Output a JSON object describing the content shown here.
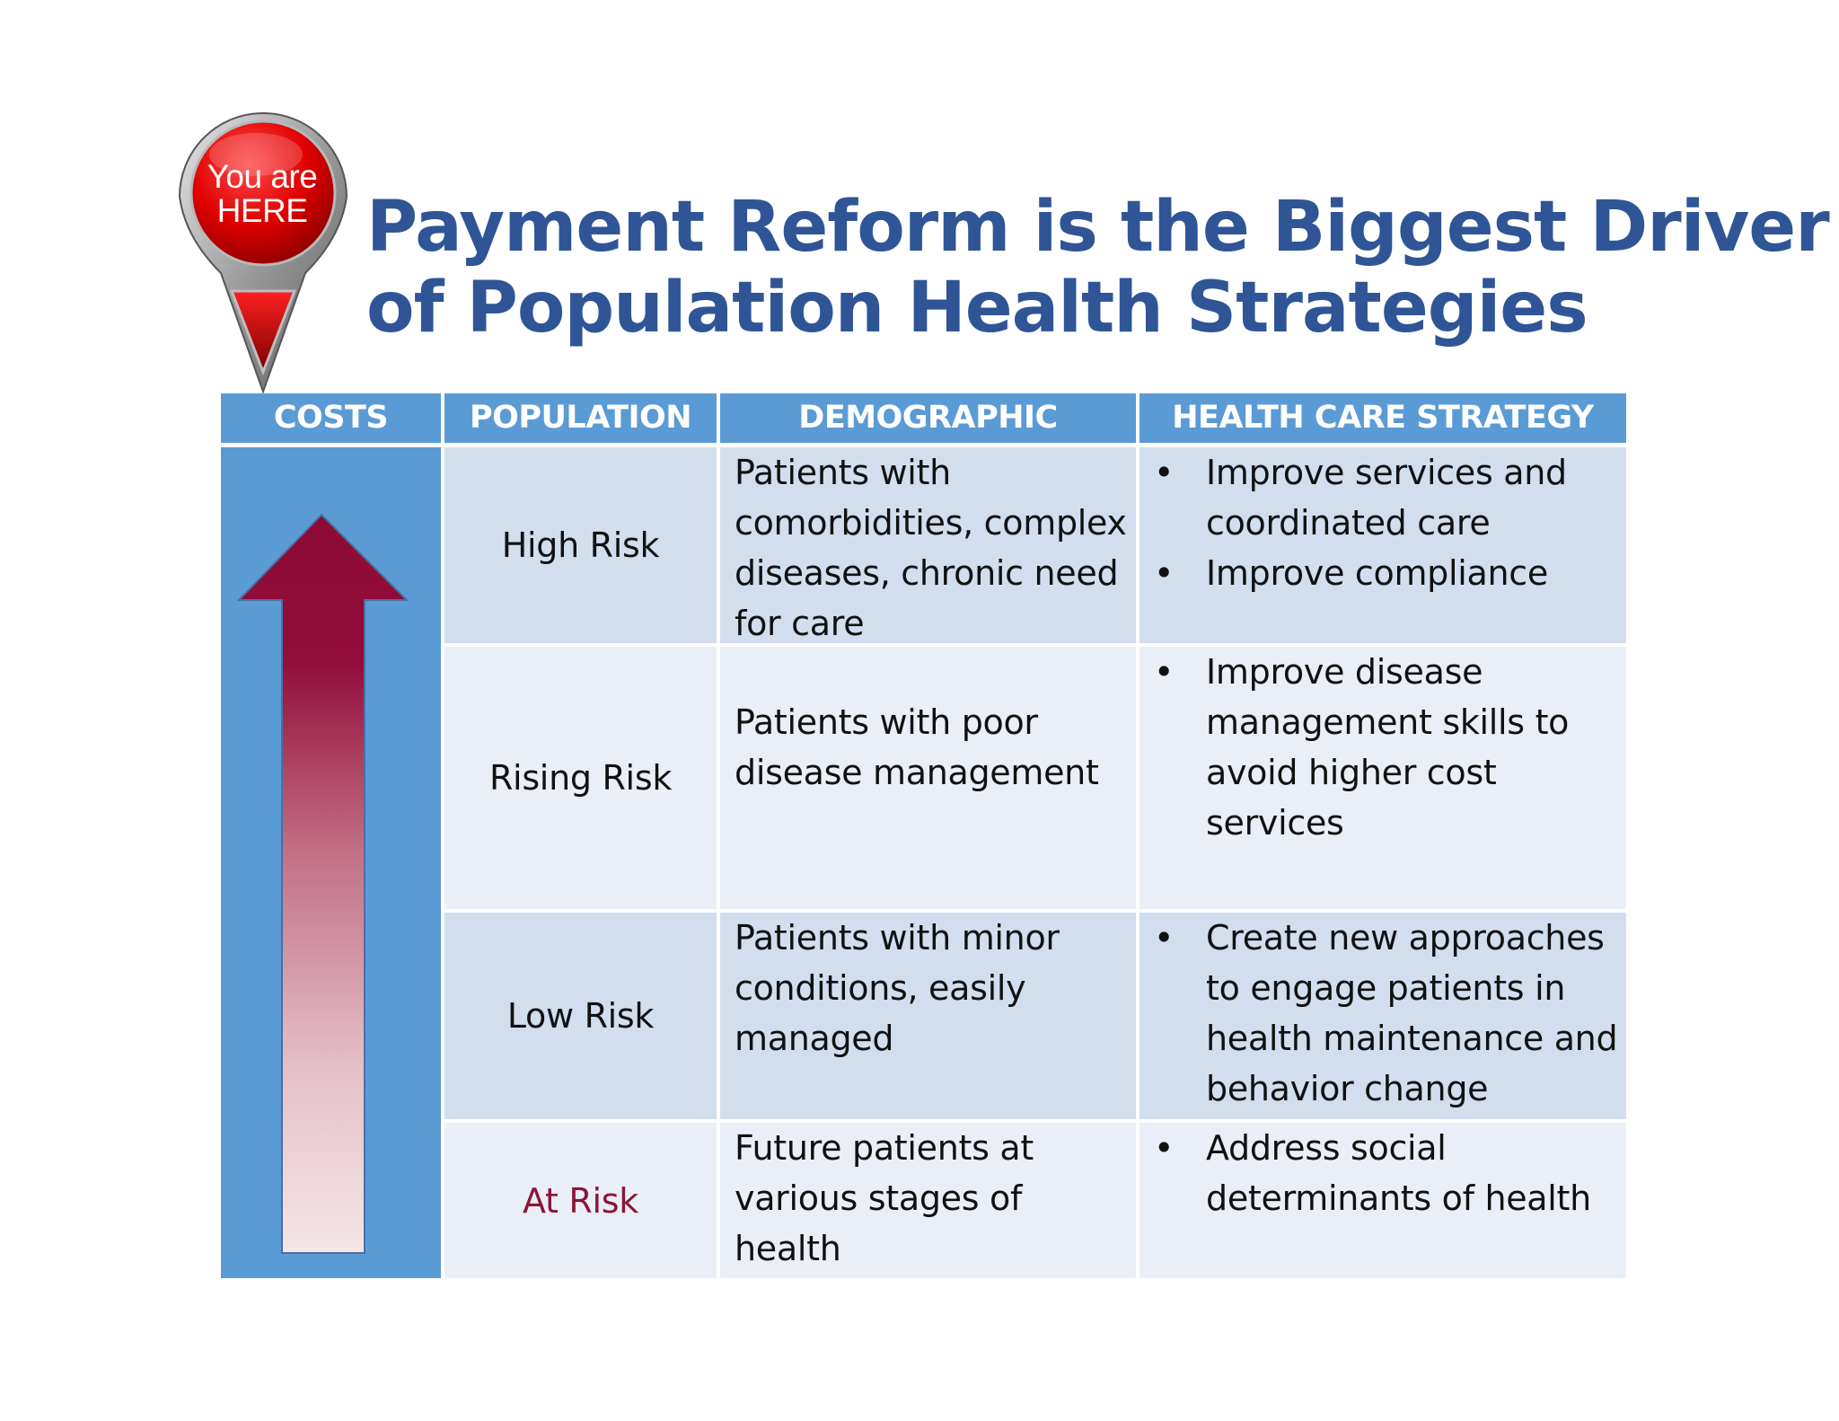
{
  "pin": {
    "line1": "You are",
    "line2": "HERE"
  },
  "title": {
    "line1": "Payment Reform is the Biggest Driver",
    "line2": "of Population Health Strategies"
  },
  "table": {
    "headers": [
      "COSTS",
      "POPULATION",
      "DEMOGRAPHIC",
      "HEALTH CARE STRATEGY"
    ],
    "rows": [
      {
        "population": "High Risk",
        "demographic": "Patients with comorbidities, complex diseases, chronic need for care",
        "strategy": [
          "Improve services and coordinated care",
          "Improve compliance"
        ]
      },
      {
        "population": "Rising Risk",
        "demographic": "Patients with poor disease management",
        "strategy": [
          "Improve disease management skills to avoid higher cost services"
        ]
      },
      {
        "population": "Low Risk",
        "demographic": "Patients with minor conditions, easily managed",
        "strategy": [
          "Create new approaches to engage patients in health maintenance and behavior change"
        ]
      },
      {
        "population": "At Risk",
        "demographic": "Future patients at various stages of health",
        "strategy": [
          "Address social determinants of health"
        ]
      }
    ]
  },
  "colors": {
    "header_bg": "#5b9bd5",
    "row_dark": "#d2deee",
    "row_light": "#eaeff7",
    "title": "#2f5597",
    "arrow": "#8b0a34",
    "at_risk_text": "#8b1538"
  },
  "icons": {
    "pin": "location-pin-icon",
    "arrow": "arrow-up-icon"
  }
}
